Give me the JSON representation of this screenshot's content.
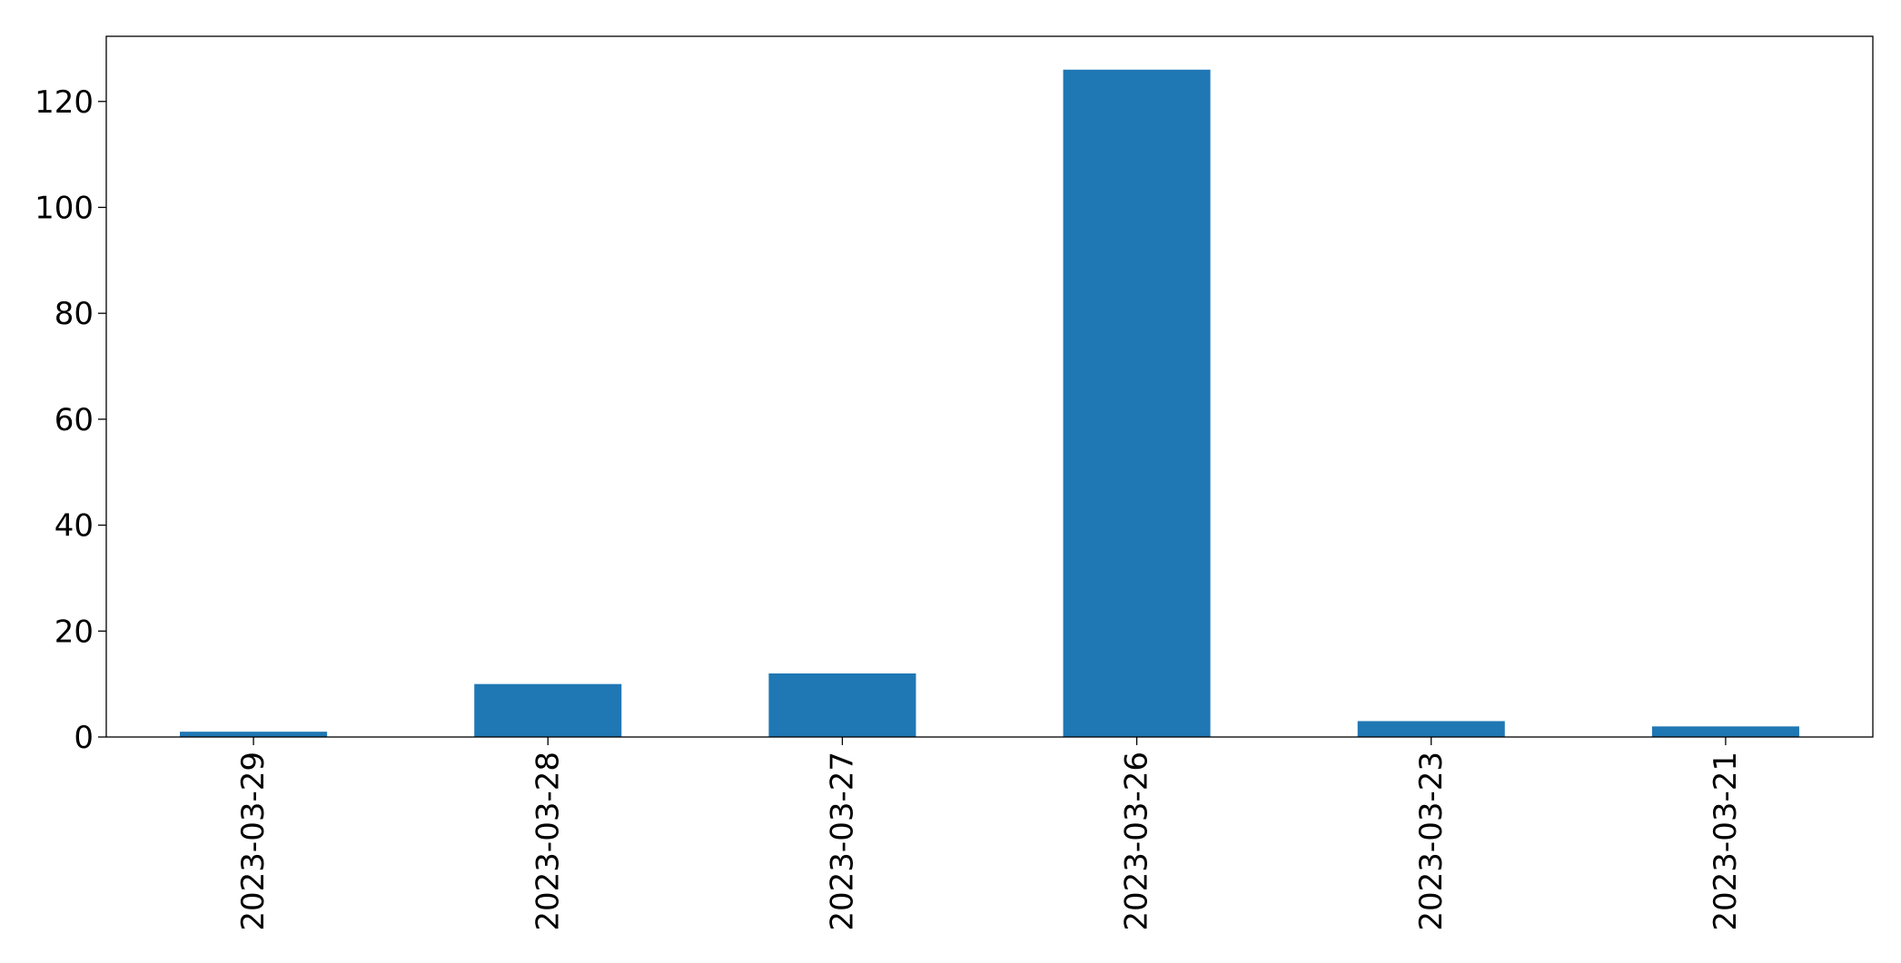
{
  "chart_data": {
    "type": "bar",
    "title": "",
    "xlabel": "",
    "ylabel": "",
    "categories": [
      "2023-03-29",
      "2023-03-28",
      "2023-03-27",
      "2023-03-26",
      "2023-03-23",
      "2023-03-21"
    ],
    "values": [
      1,
      10,
      12,
      126,
      3,
      2
    ],
    "ylim": [
      0,
      132.3
    ],
    "yticks": [
      0,
      20,
      40,
      60,
      80,
      100,
      120
    ],
    "grid": false,
    "legend": "none",
    "colors": {
      "bar": "#1f77b4",
      "axes": "#000000",
      "background": "#ffffff"
    }
  }
}
